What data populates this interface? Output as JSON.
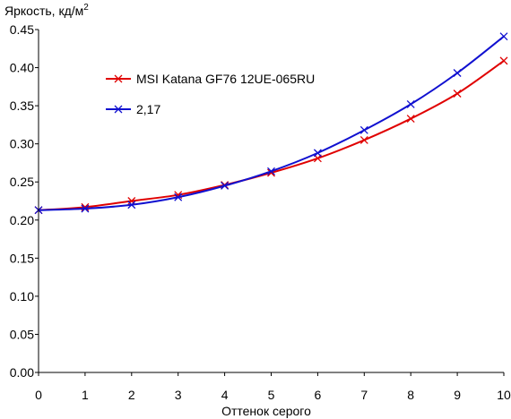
{
  "chart_data": {
    "type": "line",
    "ylabel": "Яркость, кд/м",
    "ylabel_superscript": "2",
    "xlabel": "Оттенок серого",
    "xlim": [
      0,
      10
    ],
    "ylim": [
      0,
      0.45
    ],
    "x_ticks": [
      "0",
      "1",
      "2",
      "3",
      "4",
      "5",
      "6",
      "7",
      "8",
      "9",
      "10"
    ],
    "y_ticks": [
      "0.00",
      "0.05",
      "0.10",
      "0.15",
      "0.20",
      "0.25",
      "0.30",
      "0.35",
      "0.40",
      "0.45"
    ],
    "x": [
      0,
      1,
      2,
      3,
      4,
      5,
      6,
      7,
      8,
      9,
      10
    ],
    "grid": false,
    "legend_position": "top-left",
    "series": [
      {
        "name": "MSI Katana GF76 12UE-065RU",
        "color": "#e00000",
        "marker": "x",
        "values": [
          0.213,
          0.217,
          0.225,
          0.233,
          0.246,
          0.262,
          0.281,
          0.305,
          0.333,
          0.366,
          0.409
        ]
      },
      {
        "name": "2,17",
        "color": "#1010d0",
        "marker": "x",
        "values": [
          0.213,
          0.215,
          0.22,
          0.23,
          0.245,
          0.264,
          0.288,
          0.318,
          0.352,
          0.393,
          0.441
        ]
      }
    ]
  }
}
